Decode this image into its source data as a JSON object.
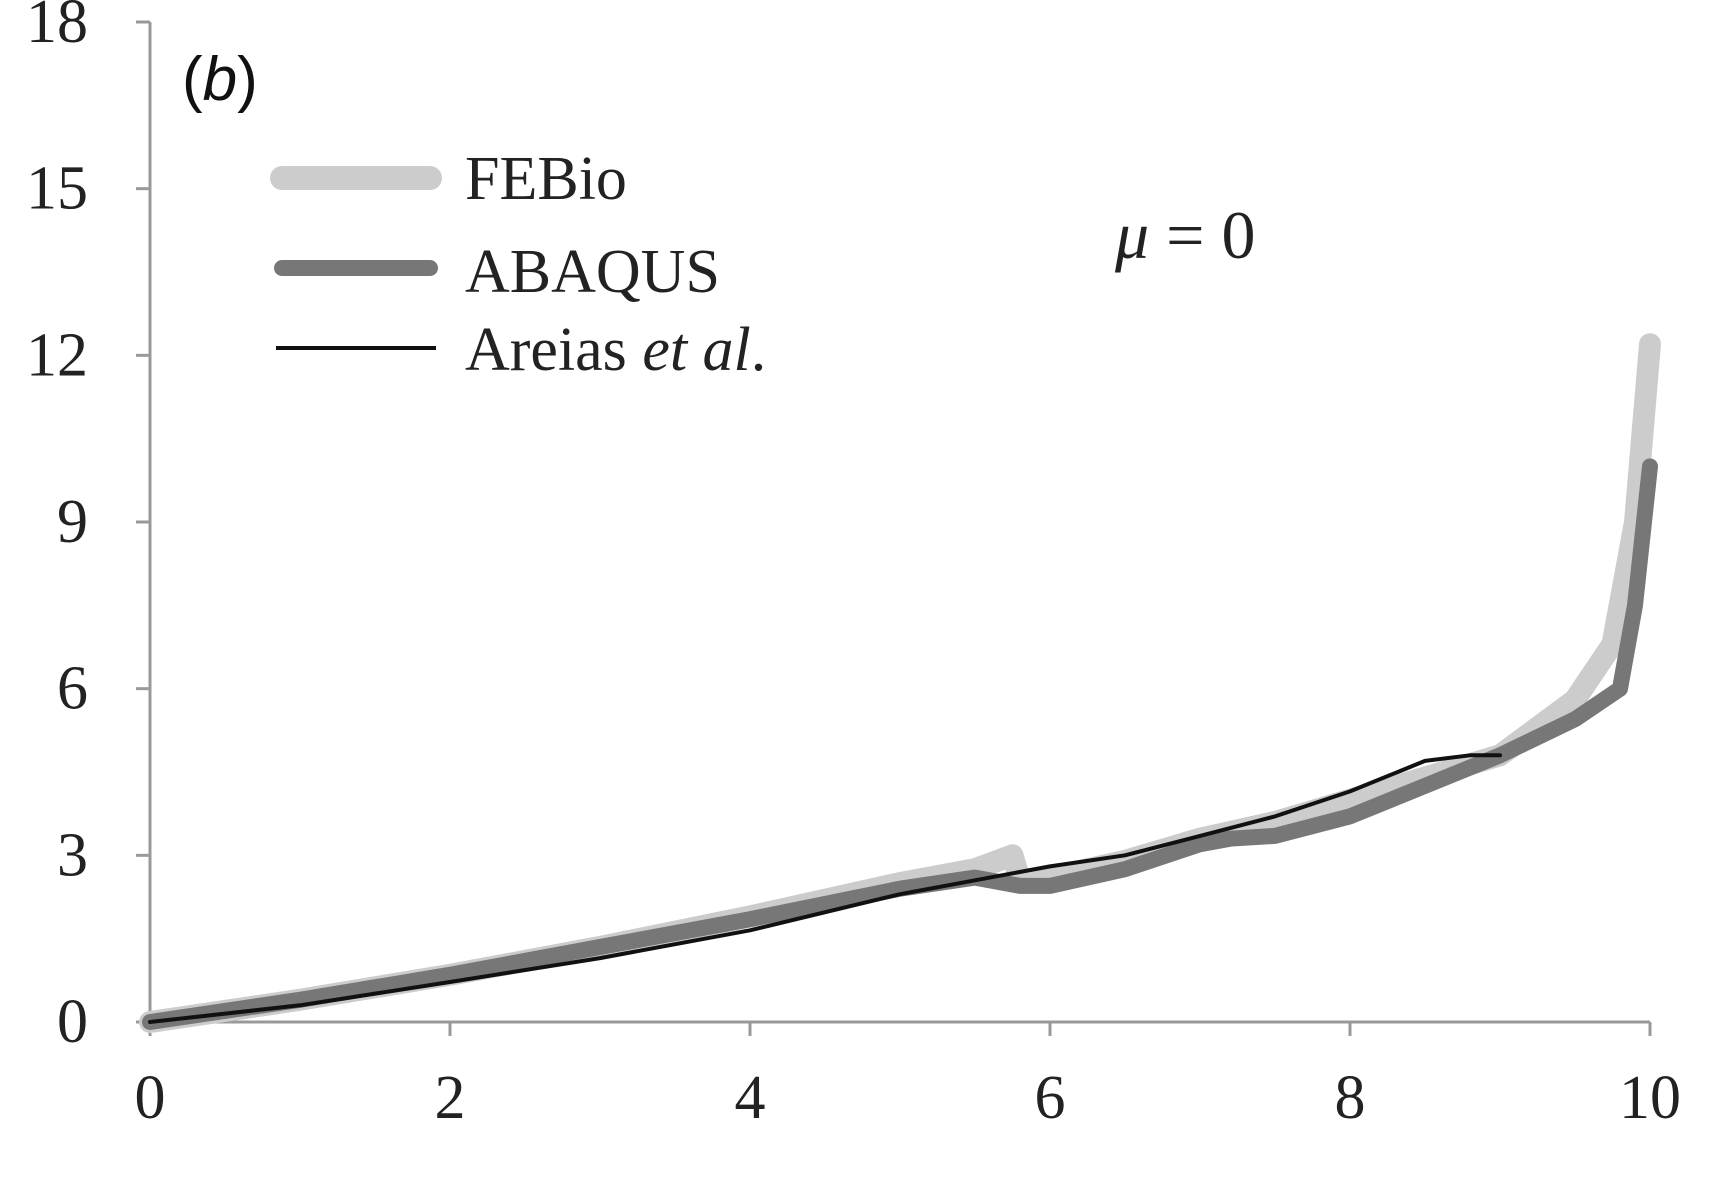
{
  "chart_data": {
    "type": "line",
    "panel_label": "(b)",
    "annotation": "μ = 0",
    "xlabel": "",
    "ylabel": "",
    "xlim": [
      0,
      10
    ],
    "ylim": [
      0,
      18
    ],
    "x_ticks": [
      "0",
      "2",
      "4",
      "6",
      "8",
      "10"
    ],
    "y_ticks": [
      "0",
      "3",
      "6",
      "9",
      "12",
      "15",
      "18"
    ],
    "grid": false,
    "legend_position": "top-left",
    "series": [
      {
        "name": "FEBio",
        "color": "#cccccc",
        "style": "thick",
        "points": [
          [
            0,
            0
          ],
          [
            1,
            0.4
          ],
          [
            2,
            0.85
          ],
          [
            3,
            1.35
          ],
          [
            4,
            1.9
          ],
          [
            5,
            2.5
          ],
          [
            5.5,
            2.75
          ],
          [
            5.75,
            3.0
          ],
          [
            5.8,
            2.55
          ],
          [
            6,
            2.6
          ],
          [
            6.5,
            2.9
          ],
          [
            7,
            3.3
          ],
          [
            7.5,
            3.6
          ],
          [
            8,
            4.0
          ],
          [
            8.5,
            4.4
          ],
          [
            9,
            4.8
          ],
          [
            9.5,
            5.8
          ],
          [
            9.75,
            6.8
          ],
          [
            9.9,
            9.0
          ],
          [
            10,
            12.2
          ]
        ]
      },
      {
        "name": "ABAQUS",
        "color": "#777777",
        "style": "thick",
        "points": [
          [
            0,
            0
          ],
          [
            1,
            0.4
          ],
          [
            2,
            0.85
          ],
          [
            3,
            1.35
          ],
          [
            4,
            1.85
          ],
          [
            5,
            2.4
          ],
          [
            5.5,
            2.6
          ],
          [
            5.8,
            2.45
          ],
          [
            6,
            2.45
          ],
          [
            6.5,
            2.75
          ],
          [
            7,
            3.2
          ],
          [
            7.2,
            3.3
          ],
          [
            7.5,
            3.35
          ],
          [
            8,
            3.7
          ],
          [
            8.5,
            4.25
          ],
          [
            9,
            4.8
          ],
          [
            9.5,
            5.45
          ],
          [
            9.8,
            6.0
          ],
          [
            9.9,
            7.5
          ],
          [
            10,
            10.0
          ]
        ]
      },
      {
        "name": "Areias et al.",
        "color": "#111111",
        "style": "thin",
        "points": [
          [
            0,
            0
          ],
          [
            1,
            0.3
          ],
          [
            2,
            0.72
          ],
          [
            3,
            1.15
          ],
          [
            4,
            1.65
          ],
          [
            5,
            2.3
          ],
          [
            5.5,
            2.55
          ],
          [
            6,
            2.8
          ],
          [
            6.5,
            3.0
          ],
          [
            7,
            3.35
          ],
          [
            7.5,
            3.7
          ],
          [
            8,
            4.15
          ],
          [
            8.5,
            4.7
          ],
          [
            8.8,
            4.8
          ],
          [
            9,
            4.8
          ]
        ]
      }
    ]
  }
}
